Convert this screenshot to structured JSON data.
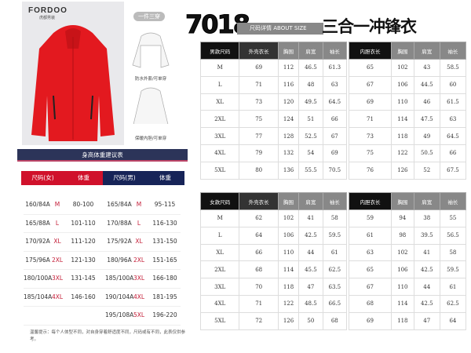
{
  "product": {
    "brand": "FORDOO",
    "brand_sub": "虎都男装",
    "pill": "一件三穿",
    "caption_outer": "防水外套/可单穿",
    "caption_inner": "保暖内胆/可单穿",
    "jacket_color": "#e3191f"
  },
  "header": {
    "model": "7018",
    "size_bar": "尺码详情 ABOUT SIZE",
    "title": "三合一冲锋衣"
  },
  "men": {
    "outer_headers": [
      "男款尺码",
      "外壳衣长",
      "胸围",
      "肩宽",
      "袖长"
    ],
    "inner_headers": [
      "内胆衣长",
      "胸围",
      "肩宽",
      "袖长"
    ],
    "rows": [
      [
        "M",
        "69",
        "112",
        "46.5",
        "61.3",
        "65",
        "102",
        "43",
        "58.5"
      ],
      [
        "L",
        "71",
        "116",
        "48",
        "63",
        "67",
        "106",
        "44.5",
        "60"
      ],
      [
        "XL",
        "73",
        "120",
        "49.5",
        "64.5",
        "69",
        "110",
        "46",
        "61.5"
      ],
      [
        "2XL",
        "75",
        "124",
        "51",
        "66",
        "71",
        "114",
        "47.5",
        "63"
      ],
      [
        "3XL",
        "77",
        "128",
        "52.5",
        "67",
        "73",
        "118",
        "49",
        "64.5"
      ],
      [
        "4XL",
        "79",
        "132",
        "54",
        "69",
        "75",
        "122",
        "50.5",
        "66"
      ],
      [
        "5XL",
        "80",
        "136",
        "55.5",
        "70.5",
        "76",
        "126",
        "52",
        "67.5"
      ]
    ]
  },
  "women": {
    "outer_headers": [
      "女款尺码",
      "外壳衣长",
      "胸围",
      "肩宽",
      "袖长"
    ],
    "inner_headers": [
      "内胆衣长",
      "胸围",
      "肩宽",
      "袖长"
    ],
    "rows": [
      [
        "M",
        "62",
        "102",
        "41",
        "58",
        "59",
        "94",
        "38",
        "55"
      ],
      [
        "L",
        "64",
        "106",
        "42.5",
        "59.5",
        "61",
        "98",
        "39.5",
        "56.5"
      ],
      [
        "XL",
        "66",
        "110",
        "44",
        "61",
        "63",
        "102",
        "41",
        "58"
      ],
      [
        "2XL",
        "68",
        "114",
        "45.5",
        "62.5",
        "65",
        "106",
        "42.5",
        "59.5"
      ],
      [
        "3XL",
        "70",
        "118",
        "47",
        "63.5",
        "67",
        "110",
        "44",
        "61"
      ],
      [
        "4XL",
        "71",
        "122",
        "48.5",
        "66.5",
        "68",
        "114",
        "42.5",
        "62.5"
      ],
      [
        "5XL",
        "72",
        "126",
        "50",
        "68",
        "69",
        "118",
        "47",
        "64"
      ]
    ]
  },
  "guide": {
    "title": "身高体重建议表",
    "female_header": [
      "尺码(女)",
      "体重"
    ],
    "male_header": [
      "尺码(男)",
      "体重"
    ],
    "rows": [
      [
        "160/84A",
        "M",
        "80-100",
        "165/84A",
        "M",
        "95-115"
      ],
      [
        "165/88A",
        "L",
        "101-110",
        "170/88A",
        "L",
        "116-130"
      ],
      [
        "170/92A",
        "XL",
        "111-120",
        "175/92A",
        "XL",
        "131-150"
      ],
      [
        "175/96A",
        "2XL",
        "121-130",
        "180/96A",
        "2XL",
        "151-165"
      ],
      [
        "180/100A",
        "3XL",
        "131-145",
        "185/100A",
        "3XL",
        "166-180"
      ],
      [
        "185/104A",
        "4XL",
        "146-160",
        "190/104A",
        "4XL",
        "181-195"
      ],
      [
        "",
        "",
        "",
        "195/108A",
        "5XL",
        "196-220"
      ]
    ],
    "note": "温馨提示：每个人体型不同，对自身穿着舒适度不同，尺码或有不同，此表仅供参考。"
  }
}
